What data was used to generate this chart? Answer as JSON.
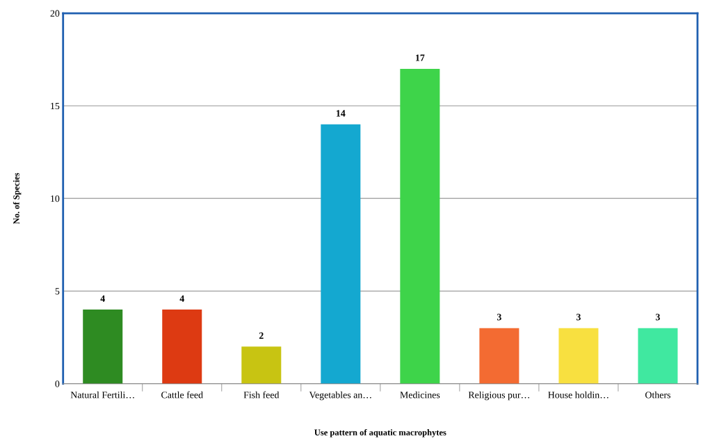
{
  "chart_data": {
    "type": "bar",
    "xlabel": "Use pattern of aquatic macrophytes",
    "ylabel": "No. of Species",
    "categories": [
      "Natural Fertili…",
      "Cattle feed",
      "Fish feed",
      "Vegetables an…",
      "Medicines",
      "Religious pur…",
      "House holdin…",
      "Others"
    ],
    "values": [
      4,
      4,
      2,
      14,
      17,
      3,
      3,
      3
    ],
    "colors": [
      "#2e8b22",
      "#dd3a12",
      "#c8c412",
      "#14a8d0",
      "#3ed44a",
      "#f36b32",
      "#f8e040",
      "#40e8a0"
    ],
    "ylim": [
      0,
      20
    ],
    "yticks": [
      0,
      5,
      10,
      15,
      20
    ],
    "grid": "y",
    "data_labels": true
  }
}
